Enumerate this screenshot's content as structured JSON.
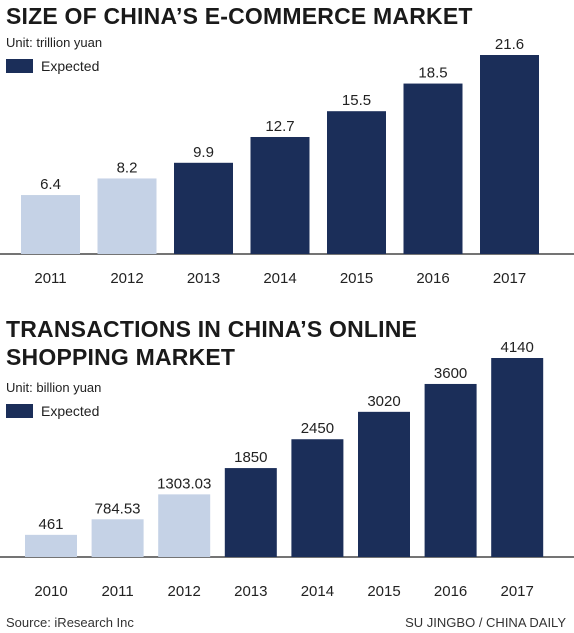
{
  "colors": {
    "actual": "#c5d2e6",
    "expected": "#1b2e59"
  },
  "chart_data": [
    {
      "type": "bar",
      "title": "SIZE OF CHINA’S E-COMMERCE MARKET",
      "unit": "Unit: trillion yuan",
      "legend": "Expected",
      "categories": [
        "2011",
        "2012",
        "2013",
        "2014",
        "2015",
        "2016",
        "2017"
      ],
      "values": [
        6.4,
        8.2,
        9.9,
        12.7,
        15.5,
        18.5,
        21.6
      ],
      "labels": [
        "6.4",
        "8.2",
        "9.9",
        "12.7",
        "15.5",
        "18.5",
        "21.6"
      ],
      "expected": [
        false,
        false,
        true,
        true,
        true,
        true,
        true
      ],
      "ylim": [
        0,
        21.6
      ]
    },
    {
      "type": "bar",
      "title_lines": [
        "TRANSACTIONS IN CHINA’S ONLINE",
        "SHOPPING MARKET"
      ],
      "unit": "Unit: billion yuan",
      "legend": "Expected",
      "categories": [
        "2010",
        "2011",
        "2012",
        "2013",
        "2014",
        "2015",
        "2016",
        "2017"
      ],
      "values": [
        461,
        784.53,
        1303.03,
        1850,
        2450,
        3020,
        3600,
        4140
      ],
      "labels": [
        "461",
        "784.53",
        "1303.03",
        "1850",
        "2450",
        "3020",
        "3600",
        "4140"
      ],
      "expected": [
        false,
        false,
        false,
        true,
        true,
        true,
        true,
        true
      ],
      "ylim": [
        0,
        4140
      ]
    }
  ],
  "footer": {
    "source": "Source: iResearch Inc",
    "credit": "SU JINGBO / CHINA DAILY"
  }
}
